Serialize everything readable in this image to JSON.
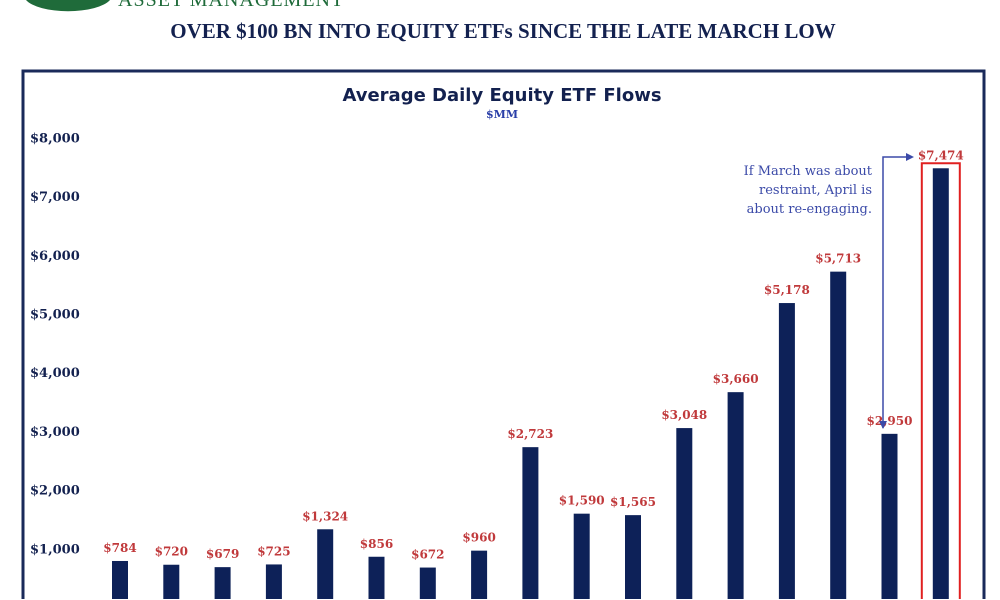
{
  "header": {
    "brand": "ASSET MANAGEMENT",
    "headline": "OVER $100 BN INTO EQUITY ETFs SINCE THE LATE MARCH LOW"
  },
  "colors": {
    "bar": "#0d2158",
    "label": "#c0393b",
    "axis": "#1a2a5a",
    "annotation": "#3b4aa8",
    "highlight": "#e02020",
    "logo": "#1f6b3a"
  },
  "chart_data": {
    "type": "bar",
    "title": "Average Daily Equity ETF Flows",
    "subtitle": "$MM",
    "ylim": [
      0,
      8000
    ],
    "yticks": [
      "$1,000",
      "$2,000",
      "$3,000",
      "$4,000",
      "$5,000",
      "$6,000",
      "$7,000",
      "$8,000"
    ],
    "ytick_values": [
      1000,
      2000,
      3000,
      4000,
      5000,
      6000,
      7000,
      8000
    ],
    "values": [
      784,
      720,
      679,
      725,
      1324,
      856,
      672,
      960,
      2723,
      1590,
      1565,
      3048,
      3660,
      5178,
      5713,
      2950,
      7474
    ],
    "labels": [
      "$784",
      "$720",
      "$679",
      "$725",
      "$1,324",
      "$856",
      "$672",
      "$960",
      "$2,723",
      "$1,590",
      "$1,565",
      "$3,048",
      "$3,660",
      "$5,178",
      "$5,713",
      "$2,950",
      "$7,474"
    ],
    "grid": false,
    "highlighted_index": 16,
    "annotation": [
      "If March was about",
      "restraint, April is",
      "about re-engaging."
    ]
  }
}
